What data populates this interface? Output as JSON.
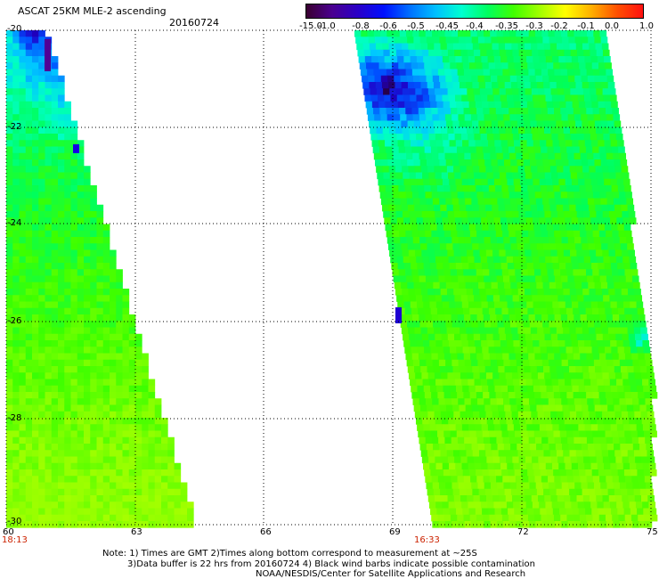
{
  "header": {
    "title": "ASCAT 25KM MLE-2 ascending",
    "date": "20160724"
  },
  "colorbar": {
    "labels": [
      "-15.0",
      "-1.0",
      "-0.8",
      "-0.6",
      "-0.5",
      "-0.45",
      "-0.4",
      "-0.35",
      "-0.3",
      "-0.2",
      "-0.1",
      "0.0",
      "1.0"
    ],
    "colors": [
      "#000000",
      "#5a0090",
      "#1000e8",
      "#0060ff",
      "#00c8ff",
      "#00ffe0",
      "#00ff80",
      "#40ff00",
      "#a0ff00",
      "#ffff00",
      "#ffb000",
      "#ff6000",
      "#ff0000"
    ]
  },
  "axes": {
    "y_labels": [
      "-20",
      "-22",
      "-24",
      "-26",
      "-28",
      "-30"
    ],
    "x_labels": [
      "60",
      "63",
      "66",
      "69",
      "72",
      "75"
    ]
  },
  "pass_times": [
    "18:13",
    "16:33"
  ],
  "notes": [
    "Note: 1) Times are GMT 2)Times along bottom correspond to measurement at ~25S",
    "3)Data buffer is 22 hrs from 20160724 4) Black wind barbs indicate possible contamination",
    "NOAA/NESDIS/Center for Satellite Applications and Research"
  ]
}
